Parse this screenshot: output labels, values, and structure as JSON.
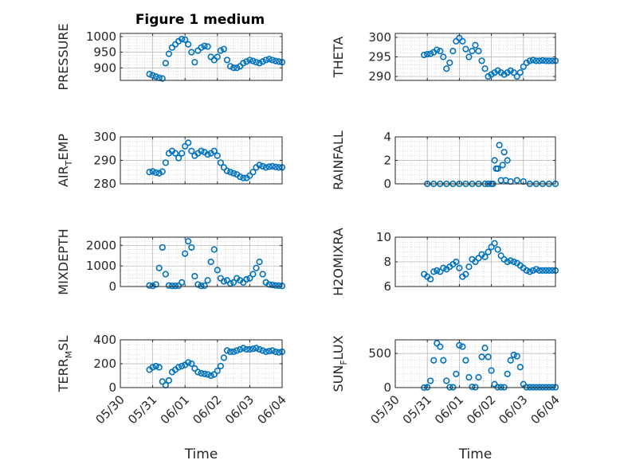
{
  "title": "Figure 1 medium",
  "colors": {
    "marker": "#0072BD",
    "axis": "#262626",
    "grid": "#b0b0b0",
    "background": "#ffffff"
  },
  "x_ticks": [
    "05/30",
    "05/31",
    "06/01",
    "06/02",
    "06/03",
    "06/04"
  ],
  "chart_data": [
    {
      "type": "scatter",
      "panel": "1",
      "title": "Figure 1 medium",
      "ylabel": {
        "base": "PRESSURE"
      },
      "xlim": [
        0,
        5
      ],
      "ylim": [
        860,
        1010
      ],
      "yticks": [
        900,
        950,
        1000
      ],
      "grid": true,
      "x": [
        0.9,
        1.0,
        1.1,
        1.2,
        1.3,
        1.4,
        1.5,
        1.6,
        1.7,
        1.8,
        1.9,
        2.0,
        2.1,
        2.2,
        2.3,
        2.4,
        2.5,
        2.6,
        2.7,
        2.8,
        2.9,
        3.0,
        3.1,
        3.2,
        3.3,
        3.4,
        3.5,
        3.6,
        3.7,
        3.8,
        3.9,
        4.0,
        4.1,
        4.2,
        4.3,
        4.4,
        4.5,
        4.6,
        4.7,
        4.8,
        4.9,
        5.0
      ],
      "y": [
        880,
        876,
        872,
        868,
        866,
        915,
        945,
        965,
        975,
        985,
        992,
        990,
        975,
        950,
        918,
        955,
        965,
        970,
        968,
        935,
        925,
        935,
        955,
        960,
        925,
        905,
        900,
        900,
        905,
        915,
        920,
        925,
        922,
        918,
        915,
        920,
        925,
        928,
        925,
        922,
        920,
        918
      ]
    },
    {
      "type": "scatter",
      "panel": "2",
      "ylabel": {
        "base": "THETA"
      },
      "xlim": [
        0,
        5
      ],
      "ylim": [
        289,
        301
      ],
      "yticks": [
        290,
        295,
        300
      ],
      "grid": true,
      "x": [
        0.9,
        1.0,
        1.1,
        1.2,
        1.3,
        1.4,
        1.5,
        1.6,
        1.7,
        1.8,
        1.9,
        2.0,
        2.1,
        2.2,
        2.3,
        2.4,
        2.5,
        2.6,
        2.7,
        2.8,
        2.9,
        3.0,
        3.1,
        3.2,
        3.3,
        3.4,
        3.5,
        3.6,
        3.7,
        3.8,
        3.9,
        4.0,
        4.1,
        4.2,
        4.3,
        4.4,
        4.5,
        4.6,
        4.7,
        4.8,
        4.9,
        5.0
      ],
      "y": [
        295.5,
        295.7,
        295.8,
        296.2,
        296.8,
        296.5,
        295.0,
        292.0,
        293.5,
        296.5,
        299.0,
        299.8,
        299.0,
        297.0,
        295.0,
        296.5,
        298.0,
        296.5,
        294.0,
        292.0,
        290.0,
        290.5,
        291.0,
        291.5,
        291.0,
        290.5,
        291.0,
        291.5,
        291.0,
        290.0,
        291.0,
        292.5,
        293.5,
        294.0,
        294.2,
        294.0,
        294.0,
        294.1,
        294.0,
        294.0,
        294.0,
        294.0
      ]
    },
    {
      "type": "scatter",
      "panel": "3",
      "ylabel": {
        "base": "AIR",
        "sub": "T",
        "tail": "EMP"
      },
      "xlim": [
        0,
        5
      ],
      "ylim": [
        280,
        300
      ],
      "yticks": [
        280,
        290,
        300
      ],
      "grid": true,
      "x": [
        0.9,
        1.0,
        1.1,
        1.2,
        1.3,
        1.4,
        1.5,
        1.6,
        1.7,
        1.8,
        1.9,
        2.0,
        2.1,
        2.2,
        2.3,
        2.4,
        2.5,
        2.6,
        2.7,
        2.8,
        2.9,
        3.0,
        3.1,
        3.2,
        3.3,
        3.4,
        3.5,
        3.6,
        3.7,
        3.8,
        3.9,
        4.0,
        4.1,
        4.2,
        4.3,
        4.4,
        4.5,
        4.6,
        4.7,
        4.8,
        4.9,
        5.0
      ],
      "y": [
        285,
        285.3,
        284.8,
        284.5,
        285.2,
        289,
        293,
        294,
        293,
        291,
        293,
        296,
        297.5,
        294,
        292,
        293,
        294,
        293.5,
        292.5,
        293,
        294,
        292,
        289,
        287,
        285.5,
        285,
        284.5,
        284,
        283,
        282.5,
        282.5,
        283.5,
        285,
        287,
        288,
        287.5,
        287,
        287.3,
        287.5,
        287.2,
        287,
        287
      ]
    },
    {
      "type": "scatter",
      "panel": "4",
      "ylabel": {
        "base": "RAINFALL"
      },
      "xlim": [
        0,
        5
      ],
      "ylim": [
        0,
        4
      ],
      "yticks": [
        0,
        2,
        4
      ],
      "grid": true,
      "x": [
        1.0,
        1.2,
        1.4,
        1.6,
        1.8,
        2.0,
        2.2,
        2.4,
        2.6,
        2.8,
        2.9,
        3.0,
        3.05,
        3.1,
        3.15,
        3.2,
        3.25,
        3.3,
        3.35,
        3.4,
        3.45,
        3.5,
        3.6,
        3.8,
        4.0,
        4.2,
        4.4,
        4.6,
        4.8,
        5.0
      ],
      "y": [
        0,
        0,
        0,
        0,
        0,
        0,
        0,
        0,
        0,
        0,
        0,
        0,
        0,
        2,
        1.3,
        1.3,
        3.3,
        0.3,
        1.6,
        2.7,
        0.3,
        2.0,
        0.2,
        0.3,
        0.2,
        0,
        0,
        0,
        0,
        0
      ]
    },
    {
      "type": "scatter",
      "panel": "5",
      "ylabel": {
        "base": "MIXDEPTH"
      },
      "xlim": [
        0,
        5
      ],
      "ylim": [
        0,
        2400
      ],
      "yticks": [
        0,
        1000,
        2000
      ],
      "grid": true,
      "x": [
        0.9,
        1.0,
        1.1,
        1.2,
        1.3,
        1.4,
        1.5,
        1.6,
        1.7,
        1.8,
        1.9,
        2.0,
        2.1,
        2.2,
        2.3,
        2.4,
        2.5,
        2.6,
        2.7,
        2.8,
        2.9,
        3.0,
        3.1,
        3.2,
        3.3,
        3.4,
        3.5,
        3.6,
        3.7,
        3.8,
        3.9,
        4.0,
        4.1,
        4.2,
        4.3,
        4.4,
        4.5,
        4.6,
        4.7,
        4.8,
        4.9,
        5.0
      ],
      "y": [
        50,
        30,
        100,
        900,
        1900,
        600,
        50,
        30,
        30,
        40,
        200,
        1600,
        2200,
        1900,
        500,
        100,
        30,
        40,
        300,
        1200,
        1800,
        800,
        400,
        250,
        300,
        150,
        200,
        400,
        300,
        200,
        350,
        400,
        600,
        900,
        1200,
        600,
        200,
        100,
        80,
        50,
        40,
        30
      ]
    },
    {
      "type": "scatter",
      "panel": "6",
      "ylabel": {
        "base": "H2OMIXRA"
      },
      "xlim": [
        0,
        5
      ],
      "ylim": [
        6,
        10
      ],
      "yticks": [
        6,
        8,
        10
      ],
      "grid": true,
      "x": [
        0.9,
        1.0,
        1.1,
        1.2,
        1.3,
        1.4,
        1.5,
        1.6,
        1.7,
        1.8,
        1.9,
        2.0,
        2.1,
        2.2,
        2.3,
        2.4,
        2.5,
        2.6,
        2.7,
        2.8,
        2.9,
        3.0,
        3.1,
        3.2,
        3.3,
        3.4,
        3.5,
        3.6,
        3.7,
        3.8,
        3.9,
        4.0,
        4.1,
        4.2,
        4.3,
        4.4,
        4.5,
        4.6,
        4.7,
        4.8,
        4.9,
        5.0
      ],
      "y": [
        7.0,
        6.8,
        6.6,
        7.2,
        7.3,
        7.2,
        7.5,
        7.4,
        7.6,
        7.8,
        8.0,
        7.5,
        6.8,
        7.0,
        7.6,
        8.2,
        8.0,
        8.3,
        8.6,
        8.4,
        8.8,
        9.2,
        9.5,
        9.0,
        8.5,
        8.2,
        8.0,
        8.1,
        8.0,
        7.9,
        7.7,
        7.5,
        7.3,
        7.2,
        7.3,
        7.4,
        7.3,
        7.3,
        7.3,
        7.3,
        7.3,
        7.3
      ]
    },
    {
      "type": "scatter",
      "panel": "7",
      "ylabel": {
        "base": "TERR",
        "sub": "M",
        "tail": "SL"
      },
      "xlim": [
        0,
        5
      ],
      "ylim": [
        0,
        400
      ],
      "yticks": [
        0,
        200,
        400
      ],
      "grid": true,
      "xlabel": "Time",
      "x": [
        0.9,
        1.0,
        1.1,
        1.2,
        1.3,
        1.4,
        1.5,
        1.6,
        1.7,
        1.8,
        1.9,
        2.0,
        2.1,
        2.2,
        2.3,
        2.4,
        2.5,
        2.6,
        2.7,
        2.8,
        2.9,
        3.0,
        3.1,
        3.2,
        3.3,
        3.4,
        3.5,
        3.6,
        3.7,
        3.8,
        3.9,
        4.0,
        4.1,
        4.2,
        4.3,
        4.4,
        4.5,
        4.6,
        4.7,
        4.8,
        4.9,
        5.0
      ],
      "y": [
        150,
        170,
        180,
        170,
        50,
        20,
        60,
        130,
        150,
        170,
        180,
        190,
        210,
        200,
        160,
        130,
        120,
        115,
        110,
        100,
        110,
        140,
        180,
        250,
        310,
        300,
        300,
        310,
        320,
        330,
        320,
        320,
        325,
        330,
        320,
        310,
        300,
        305,
        310,
        300,
        295,
        300
      ]
    },
    {
      "type": "scatter",
      "panel": "8",
      "ylabel": {
        "base": "SUN",
        "sub": "F",
        "tail": "LUX"
      },
      "xlim": [
        0,
        5
      ],
      "ylim": [
        0,
        700
      ],
      "yticks": [
        0,
        500
      ],
      "grid": true,
      "xlabel": "Time",
      "x": [
        0.9,
        1.0,
        1.1,
        1.2,
        1.3,
        1.4,
        1.5,
        1.6,
        1.7,
        1.8,
        1.9,
        2.0,
        2.1,
        2.2,
        2.3,
        2.4,
        2.5,
        2.6,
        2.7,
        2.8,
        2.9,
        3.0,
        3.1,
        3.2,
        3.3,
        3.4,
        3.5,
        3.6,
        3.7,
        3.8,
        3.9,
        4.0,
        4.1,
        4.2,
        4.3,
        4.4,
        4.5,
        4.6,
        4.7,
        4.8,
        4.9,
        5.0
      ],
      "y": [
        0,
        5,
        100,
        400,
        650,
        600,
        400,
        100,
        5,
        5,
        200,
        620,
        600,
        400,
        150,
        10,
        5,
        150,
        450,
        580,
        450,
        250,
        50,
        5,
        5,
        5,
        200,
        400,
        480,
        460,
        300,
        50,
        5,
        5,
        5,
        5,
        5,
        5,
        5,
        5,
        5,
        5
      ]
    }
  ]
}
